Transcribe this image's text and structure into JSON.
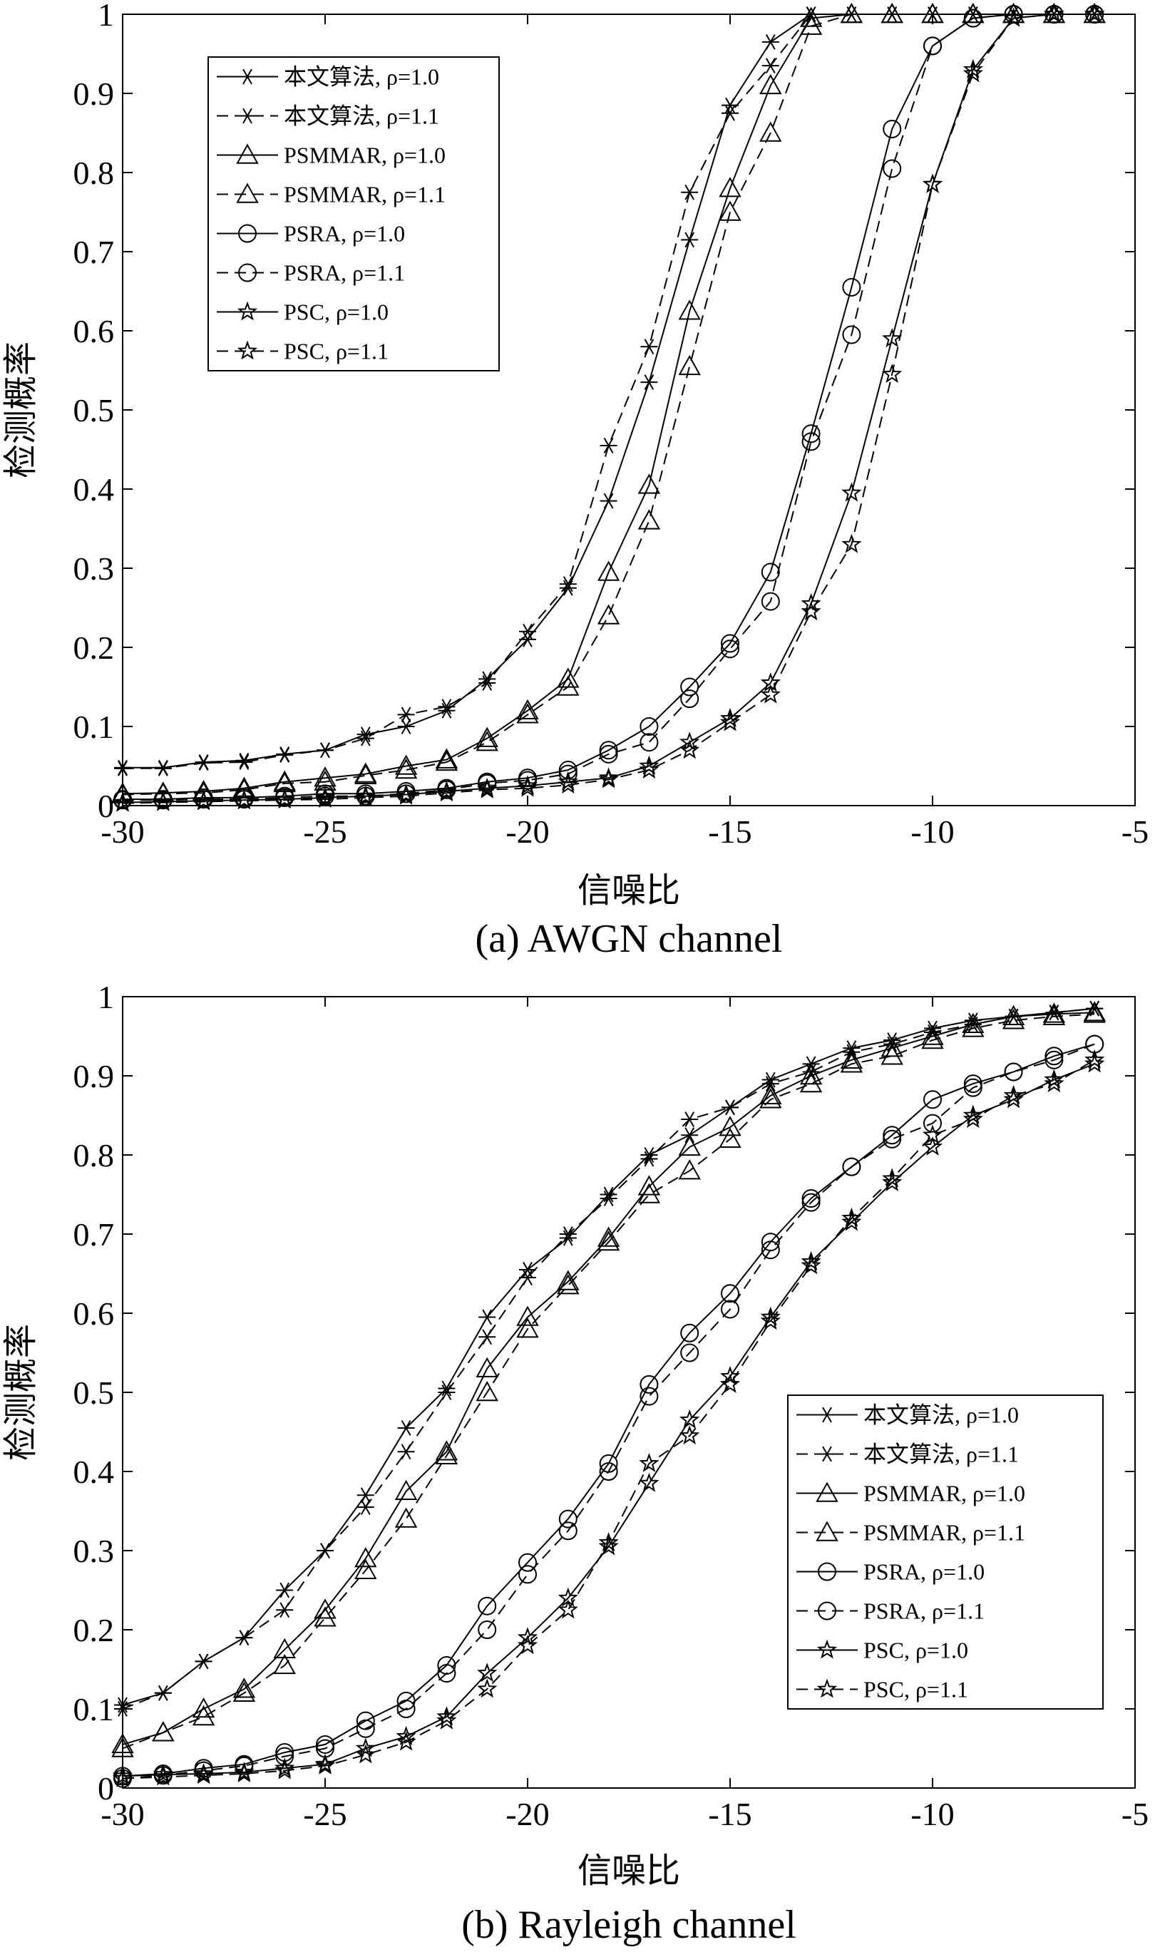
{
  "chart_data": [
    {
      "type": "line",
      "caption": "(a) AWGN channel",
      "xlabel": "信噪比",
      "ylabel": "检测概率",
      "xlim": [
        -30,
        -5
      ],
      "ylim": [
        0,
        1
      ],
      "xticks": [
        "-30",
        "-25",
        "-20",
        "-15",
        "-10",
        "-5"
      ],
      "yticks": [
        "0",
        "0.1",
        "0.2",
        "0.3",
        "0.4",
        "0.5",
        "0.6",
        "0.7",
        "0.8",
        "0.9",
        "1"
      ],
      "legend_position": "top-left",
      "x": [
        -30,
        -29,
        -28,
        -27,
        -26,
        -25,
        -24,
        -23,
        -22,
        -21,
        -20,
        -19,
        -18,
        -17,
        -16,
        -15,
        -14,
        -13,
        -12,
        -11,
        -10,
        -9,
        -8,
        -7,
        -6
      ],
      "series": [
        {
          "name": "本文算法, ρ=1.0",
          "marker": "star6",
          "dash": false,
          "values": [
            0.048,
            0.048,
            0.055,
            0.057,
            0.065,
            0.07,
            0.09,
            0.1,
            0.12,
            0.16,
            0.21,
            0.275,
            0.385,
            0.535,
            0.715,
            0.885,
            0.965,
            1.0,
            1.0,
            1.0,
            1.0,
            1.0,
            1.0,
            1.0,
            1.0
          ]
        },
        {
          "name": "本文算法, ρ=1.1",
          "marker": "star6",
          "dash": true,
          "values": [
            0.047,
            0.047,
            0.054,
            0.055,
            0.064,
            0.07,
            0.085,
            0.115,
            0.125,
            0.155,
            0.22,
            0.28,
            0.455,
            0.58,
            0.775,
            0.875,
            0.935,
            1.0,
            1.0,
            1.0,
            1.0,
            1.0,
            1.0,
            1.0,
            1.0
          ]
        },
        {
          "name": "PSMMAR, ρ=1.0",
          "marker": "triangle",
          "dash": false,
          "values": [
            0.015,
            0.016,
            0.018,
            0.022,
            0.03,
            0.035,
            0.04,
            0.05,
            0.058,
            0.085,
            0.12,
            0.16,
            0.295,
            0.405,
            0.625,
            0.78,
            0.91,
            0.995,
            1.0,
            1.0,
            1.0,
            1.0,
            1.0,
            1.0,
            1.0
          ]
        },
        {
          "name": "PSMMAR, ρ=1.1",
          "marker": "triangle",
          "dash": true,
          "values": [
            0.014,
            0.015,
            0.016,
            0.02,
            0.028,
            0.03,
            0.038,
            0.045,
            0.055,
            0.08,
            0.115,
            0.15,
            0.24,
            0.36,
            0.555,
            0.75,
            0.85,
            0.985,
            1.0,
            1.0,
            1.0,
            1.0,
            1.0,
            1.0,
            1.0
          ]
        },
        {
          "name": "PSRA, ρ=1.0",
          "marker": "circle",
          "dash": false,
          "values": [
            0.008,
            0.008,
            0.01,
            0.01,
            0.012,
            0.015,
            0.015,
            0.018,
            0.022,
            0.03,
            0.035,
            0.045,
            0.07,
            0.1,
            0.15,
            0.205,
            0.295,
            0.47,
            0.655,
            0.855,
            0.96,
            0.995,
            1.0,
            1.0,
            1.0
          ]
        },
        {
          "name": "PSRA, ρ=1.1",
          "marker": "circle",
          "dash": true,
          "values": [
            0.007,
            0.007,
            0.008,
            0.008,
            0.01,
            0.012,
            0.012,
            0.015,
            0.02,
            0.028,
            0.032,
            0.04,
            0.065,
            0.08,
            0.135,
            0.198,
            0.258,
            0.46,
            0.595,
            0.805,
            0.96,
            0.995,
            1.0,
            1.0,
            1.0
          ]
        },
        {
          "name": "PSC, ρ=1.0",
          "marker": "star5",
          "dash": false,
          "values": [
            0.004,
            0.005,
            0.006,
            0.007,
            0.008,
            0.01,
            0.012,
            0.014,
            0.018,
            0.022,
            0.025,
            0.03,
            0.035,
            0.05,
            0.08,
            0.11,
            0.155,
            0.255,
            0.395,
            0.59,
            0.785,
            0.93,
            0.995,
            1.0,
            1.0
          ]
        },
        {
          "name": "PSC, ρ=1.1",
          "marker": "star5",
          "dash": true,
          "values": [
            0.003,
            0.004,
            0.005,
            0.006,
            0.007,
            0.008,
            0.01,
            0.012,
            0.016,
            0.02,
            0.022,
            0.026,
            0.033,
            0.045,
            0.07,
            0.105,
            0.14,
            0.245,
            0.33,
            0.545,
            0.785,
            0.925,
            0.995,
            1.0,
            1.0
          ]
        }
      ]
    },
    {
      "type": "line",
      "caption": "(b) Rayleigh channel",
      "xlabel": "信噪比",
      "ylabel": "检测概率",
      "xlim": [
        -30,
        -5
      ],
      "ylim": [
        0,
        1
      ],
      "xticks": [
        "-30",
        "-25",
        "-20",
        "-15",
        "-10",
        "-5"
      ],
      "yticks": [
        "0",
        "0.1",
        "0.2",
        "0.3",
        "0.4",
        "0.5",
        "0.6",
        "0.7",
        "0.8",
        "0.9",
        "1"
      ],
      "legend_position": "bottom-right",
      "x": [
        -30,
        -29,
        -28,
        -27,
        -26,
        -25,
        -24,
        -23,
        -22,
        -21,
        -20,
        -19,
        -18,
        -17,
        -16,
        -15,
        -14,
        -13,
        -12,
        -11,
        -10,
        -9,
        -8,
        -7,
        -6
      ],
      "series": [
        {
          "name": "本文算法, ρ=1.0",
          "marker": "star6",
          "dash": false,
          "values": [
            0.105,
            0.12,
            0.16,
            0.19,
            0.25,
            0.3,
            0.37,
            0.455,
            0.505,
            0.595,
            0.655,
            0.695,
            0.75,
            0.8,
            0.825,
            0.86,
            0.895,
            0.915,
            0.935,
            0.945,
            0.96,
            0.97,
            0.975,
            0.98,
            0.985
          ]
        },
        {
          "name": "本文算法, ρ=1.1",
          "marker": "star6",
          "dash": true,
          "values": [
            0.1,
            0.12,
            0.16,
            0.19,
            0.225,
            0.3,
            0.355,
            0.425,
            0.5,
            0.57,
            0.645,
            0.7,
            0.745,
            0.795,
            0.845,
            0.86,
            0.89,
            0.905,
            0.93,
            0.94,
            0.955,
            0.965,
            0.975,
            0.98,
            0.985
          ]
        },
        {
          "name": "PSMMAR, ρ=1.0",
          "marker": "triangle",
          "dash": false,
          "values": [
            0.055,
            0.07,
            0.1,
            0.125,
            0.175,
            0.225,
            0.29,
            0.375,
            0.425,
            0.53,
            0.595,
            0.64,
            0.695,
            0.76,
            0.81,
            0.835,
            0.875,
            0.9,
            0.92,
            0.935,
            0.95,
            0.965,
            0.975,
            0.978,
            0.98
          ]
        },
        {
          "name": "PSMMAR, ρ=1.1",
          "marker": "triangle",
          "dash": true,
          "values": [
            0.05,
            0.07,
            0.09,
            0.12,
            0.155,
            0.215,
            0.275,
            0.34,
            0.42,
            0.5,
            0.58,
            0.635,
            0.69,
            0.75,
            0.78,
            0.82,
            0.87,
            0.89,
            0.915,
            0.925,
            0.945,
            0.96,
            0.97,
            0.975,
            0.978
          ]
        },
        {
          "name": "PSRA, ρ=1.0",
          "marker": "circle",
          "dash": false,
          "values": [
            0.015,
            0.018,
            0.025,
            0.03,
            0.045,
            0.055,
            0.085,
            0.11,
            0.155,
            0.23,
            0.285,
            0.34,
            0.41,
            0.51,
            0.575,
            0.625,
            0.69,
            0.745,
            0.785,
            0.825,
            0.87,
            0.89,
            0.905,
            0.925,
            0.94
          ]
        },
        {
          "name": "PSRA, ρ=1.1",
          "marker": "circle",
          "dash": true,
          "values": [
            0.012,
            0.016,
            0.022,
            0.028,
            0.04,
            0.05,
            0.075,
            0.1,
            0.145,
            0.2,
            0.27,
            0.325,
            0.4,
            0.495,
            0.55,
            0.605,
            0.68,
            0.74,
            0.785,
            0.82,
            0.84,
            0.885,
            0.905,
            0.92,
            0.94
          ]
        },
        {
          "name": "PSC, ρ=1.0",
          "marker": "star5",
          "dash": false,
          "values": [
            0.015,
            0.017,
            0.018,
            0.02,
            0.025,
            0.03,
            0.05,
            0.065,
            0.09,
            0.145,
            0.19,
            0.24,
            0.305,
            0.385,
            0.465,
            0.52,
            0.595,
            0.665,
            0.715,
            0.765,
            0.81,
            0.85,
            0.87,
            0.895,
            0.915
          ]
        },
        {
          "name": "PSC, ρ=1.1",
          "marker": "star5",
          "dash": true,
          "values": [
            0.012,
            0.014,
            0.016,
            0.018,
            0.022,
            0.028,
            0.042,
            0.058,
            0.085,
            0.125,
            0.18,
            0.225,
            0.31,
            0.41,
            0.445,
            0.51,
            0.59,
            0.66,
            0.72,
            0.77,
            0.825,
            0.845,
            0.875,
            0.89,
            0.92
          ]
        }
      ]
    }
  ]
}
